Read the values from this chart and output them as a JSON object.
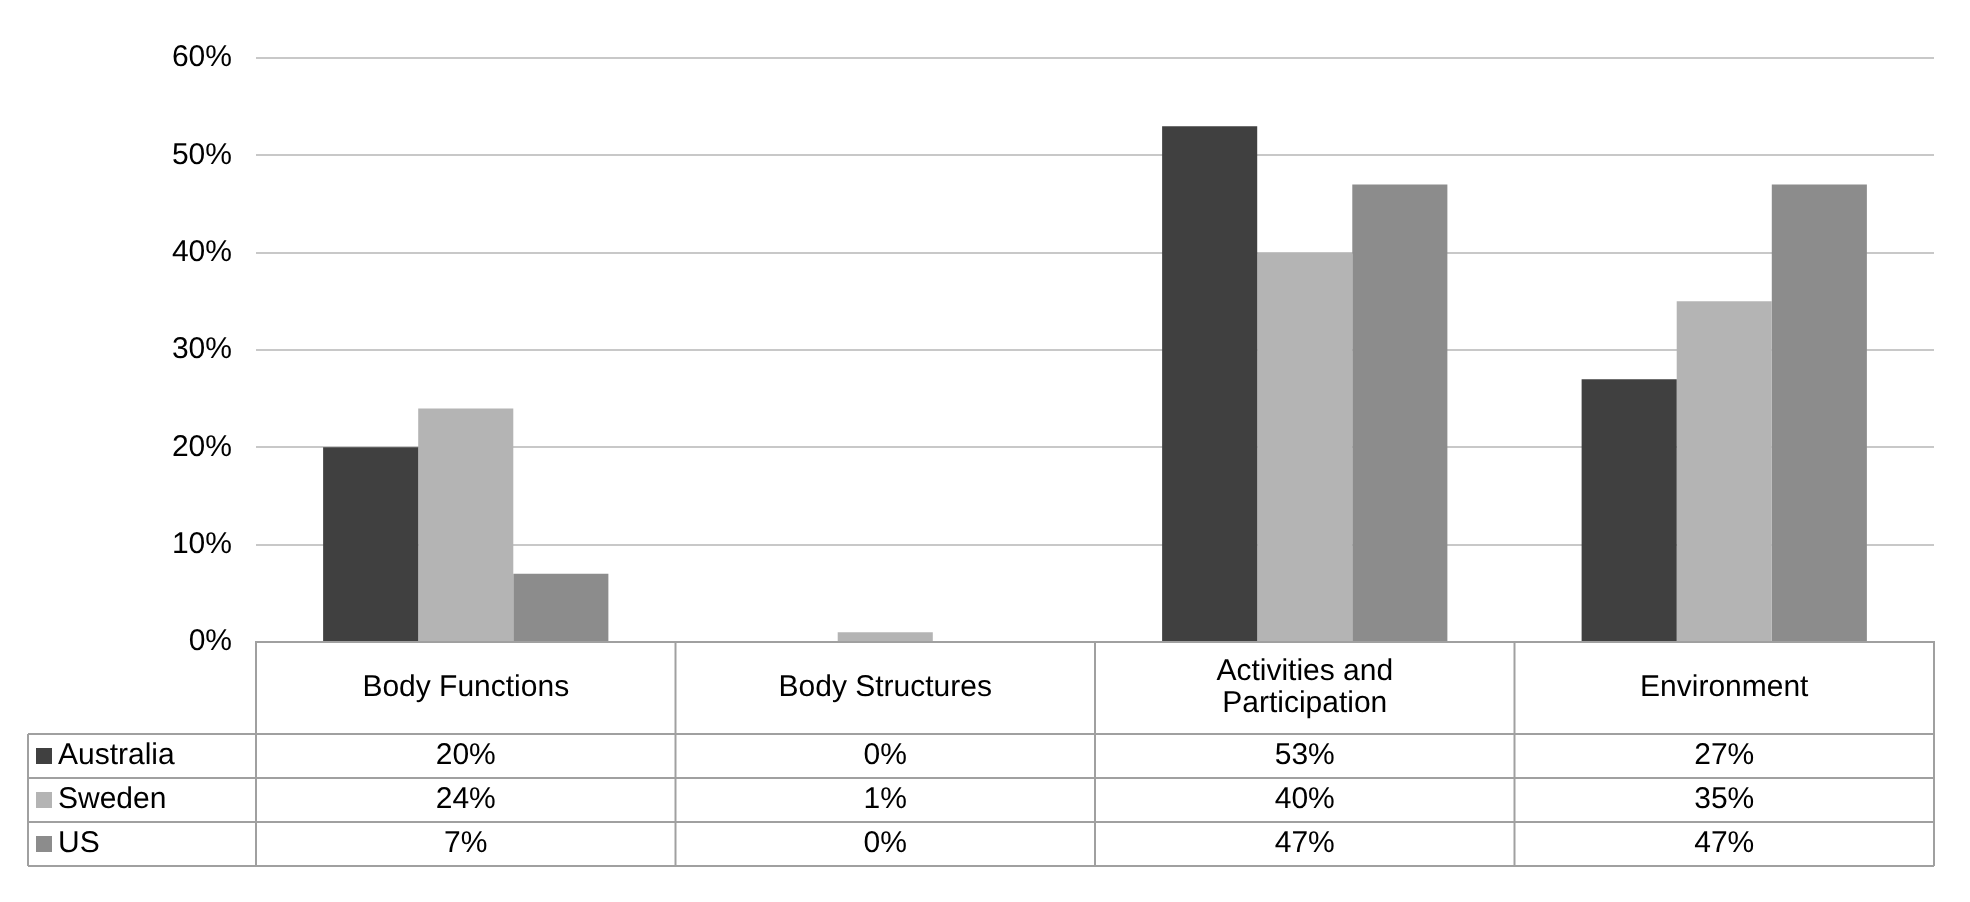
{
  "chart_data": {
    "type": "bar",
    "categories": [
      "Body Functions",
      "Body Structures",
      "Activities and Participation",
      "Environment"
    ],
    "series": [
      {
        "name": "Australia",
        "color": "#404040",
        "values": [
          20,
          0,
          53,
          27
        ],
        "value_labels": [
          "20%",
          "0%",
          "53%",
          "27%"
        ]
      },
      {
        "name": "Sweden",
        "color": "#b4b4b4",
        "values": [
          24,
          1,
          40,
          35
        ],
        "value_labels": [
          "24%",
          "1%",
          "40%",
          "35%"
        ]
      },
      {
        "name": "US",
        "color": "#8c8c8c",
        "values": [
          7,
          0,
          47,
          47
        ],
        "value_labels": [
          "7%",
          "0%",
          "47%",
          "47%"
        ]
      }
    ],
    "ylim": [
      0,
      60
    ],
    "yticks": [
      {
        "value": 0,
        "label": "0%"
      },
      {
        "value": 10,
        "label": "10%"
      },
      {
        "value": 20,
        "label": "20%"
      },
      {
        "value": 30,
        "label": "30%"
      },
      {
        "value": 40,
        "label": "40%"
      },
      {
        "value": 50,
        "label": "50%"
      },
      {
        "value": 60,
        "label": "60%"
      }
    ],
    "grid": "y",
    "legend": "bottom left"
  }
}
